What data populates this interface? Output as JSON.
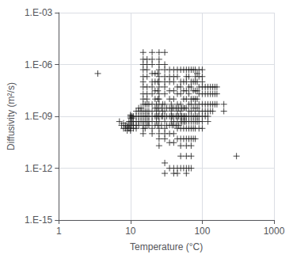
{
  "chart_data": {
    "type": "scatter",
    "xlabel": "Temperature (°C)",
    "ylabel": "Diffusivity (m²/s)",
    "log": true,
    "grid": true,
    "marker": "plus",
    "color": "#1a1a1a",
    "xlim": [
      1,
      1000
    ],
    "ylim": [
      1e-15,
      0.001
    ],
    "xticks": [
      1,
      10,
      100,
      1000
    ],
    "yticks": [
      {
        "value": 1e-15,
        "label": "1.E-15"
      },
      {
        "value": 1e-12,
        "label": "1.E-12"
      },
      {
        "value": 1e-09,
        "label": "1.E-09"
      },
      {
        "value": 1e-06,
        "label": "1.E-06"
      },
      {
        "value": 0.001,
        "label": "1.E-03"
      }
    ],
    "x": [
      3.5,
      7.0,
      7.5,
      8.0,
      8.0,
      8.5,
      8.5,
      9.0,
      9.0,
      9.0,
      9.5,
      9.5,
      9.5,
      10.0,
      10.0,
      10.0,
      10.0,
      10.0,
      10.0,
      10.0,
      10.5,
      10.5,
      10.5,
      10.5,
      11.0,
      11.0,
      11.0,
      11.0,
      12.0,
      12.0,
      12.0,
      12.0,
      12.0,
      13.0,
      13.0,
      13.0,
      13.0,
      13.0,
      14.0,
      14.0,
      14.0,
      14.0,
      15.0,
      15.0,
      15.0,
      15.0,
      15.0,
      15.0,
      15.0,
      15.0,
      15.0,
      15.0,
      15.0,
      15.0,
      15.0,
      15.0,
      15.0,
      15.0,
      16.0,
      16.0,
      16.0,
      16.0,
      16.0,
      17.0,
      17.0,
      17.0,
      17.0,
      17.0,
      17.0,
      17.0,
      17.0,
      17.0,
      17.0,
      17.0,
      17.0,
      18.0,
      18.0,
      18.0,
      18.0,
      18.0,
      20.0,
      20.0,
      20.0,
      20.0,
      20.0,
      20.0,
      20.0,
      20.0,
      20.0,
      20.0,
      20.0,
      20.0,
      20.0,
      22.0,
      22.0,
      22.0,
      22.0,
      22.0,
      22.0,
      22.0,
      23.0,
      23.0,
      23.0,
      23.0,
      24.0,
      24.0,
      24.0,
      24.0,
      24.0,
      24.0,
      24.0,
      25.0,
      25.0,
      25.0,
      25.0,
      25.0,
      25.0,
      25.0,
      25.0,
      25.0,
      25.0,
      25.0,
      25.0,
      25.0,
      25.0,
      25.0,
      25.0,
      25.0,
      27.0,
      27.0,
      27.0,
      28.0,
      28.0,
      28.0,
      30.0,
      30.0,
      30.0,
      30.0,
      30.0,
      30.0,
      30.0,
      30.0,
      30.0,
      30.0,
      30.0,
      30.0,
      30.0,
      30.0,
      30.0,
      30.0,
      32.0,
      32.0,
      32.0,
      35.0,
      35.0,
      35.0,
      35.0,
      35.0,
      35.0,
      35.0,
      35.0,
      35.0,
      35.0,
      35.0,
      37.0,
      37.0,
      37.0,
      37.0,
      38.0,
      38.0,
      38.0,
      40.0,
      40.0,
      40.0,
      40.0,
      40.0,
      40.0,
      40.0,
      40.0,
      40.0,
      40.0,
      40.0,
      40.0,
      40.0,
      43.0,
      43.0,
      43.0,
      45.0,
      45.0,
      45.0,
      45.0,
      45.0,
      45.0,
      45.0,
      45.0,
      45.0,
      45.0,
      45.0,
      45.0,
      47.0,
      47.0,
      47.0,
      50.0,
      50.0,
      50.0,
      50.0,
      50.0,
      50.0,
      50.0,
      50.0,
      50.0,
      50.0,
      50.0,
      50.0,
      50.0,
      52.0,
      52.0,
      52.0,
      55.0,
      55.0,
      55.0,
      55.0,
      55.0,
      55.0,
      55.0,
      55.0,
      55.0,
      55.0,
      57.0,
      57.0,
      57.0,
      60.0,
      60.0,
      60.0,
      60.0,
      60.0,
      60.0,
      60.0,
      60.0,
      60.0,
      60.0,
      60.0,
      60.0,
      60.0,
      60.0,
      65.0,
      65.0,
      65.0,
      65.0,
      65.0,
      65.0,
      65.0,
      65.0,
      65.0,
      65.0,
      65.0,
      70.0,
      70.0,
      70.0,
      70.0,
      70.0,
      70.0,
      70.0,
      70.0,
      70.0,
      70.0,
      70.0,
      70.0,
      70.0,
      75.0,
      75.0,
      75.0,
      75.0,
      75.0,
      75.0,
      75.0,
      75.0,
      75.0,
      80.0,
      80.0,
      80.0,
      80.0,
      80.0,
      80.0,
      80.0,
      80.0,
      80.0,
      80.0,
      80.0,
      85.0,
      85.0,
      85.0,
      85.0,
      85.0,
      85.0,
      85.0,
      90.0,
      90.0,
      90.0,
      90.0,
      90.0,
      90.0,
      90.0,
      90.0,
      90.0,
      100.0,
      100.0,
      100.0,
      100.0,
      100.0,
      100.0,
      100.0,
      100.0,
      100.0,
      100.0,
      110.0,
      110.0,
      110.0,
      110.0,
      110.0,
      120.0,
      120.0,
      120.0,
      120.0,
      120.0,
      120.0,
      130.0,
      130.0,
      130.0,
      130.0,
      140.0,
      140.0,
      140.0,
      140.0,
      150.0,
      150.0,
      150.0,
      160.0,
      160.0,
      160.0,
      200.0,
      200.0,
      300.0
    ],
    "values": [
      3e-07,
      5e-10,
      3e-10,
      2e-10,
      4e-10,
      2e-10,
      3e-10,
      1.5e-10,
      2.5e-10,
      3e-10,
      2e-10,
      3e-10,
      5e-10,
      1e-09,
      1.2e-09,
      8e-10,
      5e-10,
      3e-10,
      2e-10,
      1.5e-10,
      1e-09,
      8e-10,
      5e-10,
      3e-10,
      1e-09,
      5e-10,
      3e-10,
      2e-10,
      2e-09,
      1e-09,
      5e-10,
      3e-10,
      2e-10,
      3e-09,
      2e-09,
      1e-09,
      5e-10,
      3e-10,
      3e-09,
      2e-09,
      1e-09,
      5e-10,
      5e-06,
      2e-06,
      1e-06,
      5e-07,
      2e-07,
      1e-07,
      5e-08,
      2e-08,
      1e-08,
      5e-09,
      2e-09,
      1e-09,
      5e-10,
      3e-10,
      2e-10,
      1e-10,
      5e-09,
      2e-09,
      1e-09,
      5e-10,
      2e-10,
      2e-06,
      1e-06,
      5e-07,
      2e-07,
      5e-08,
      2e-08,
      1e-08,
      5e-09,
      2e-09,
      1e-09,
      5e-10,
      3e-10,
      5e-09,
      2e-09,
      1e-09,
      5e-10,
      3e-10,
      5e-06,
      2e-06,
      1e-06,
      3e-07,
      1e-07,
      5e-08,
      2e-08,
      5e-09,
      2e-09,
      1e-09,
      5e-10,
      2e-10,
      1e-10,
      3e-07,
      1e-07,
      3e-08,
      1e-08,
      3e-09,
      1e-09,
      3e-10,
      5e-09,
      2e-09,
      1e-09,
      5e-10,
      3e-07,
      1e-07,
      3e-08,
      1e-08,
      3e-09,
      1e-09,
      3e-10,
      5e-06,
      2e-06,
      1e-06,
      5e-07,
      2e-07,
      1e-07,
      5e-08,
      2e-08,
      1e-08,
      5e-09,
      2e-09,
      1e-09,
      5e-10,
      2e-10,
      1e-10,
      5e-11,
      2e-11,
      3e-09,
      1e-09,
      3e-10,
      5e-09,
      2e-09,
      1e-09,
      5e-06,
      1e-06,
      5e-07,
      2e-07,
      1e-07,
      5e-08,
      2e-08,
      5e-09,
      2e-09,
      1e-09,
      5e-10,
      2e-10,
      1e-10,
      5e-11,
      2e-12,
      5e-13,
      3e-09,
      1e-09,
      3e-10,
      5e-07,
      2e-07,
      1e-07,
      3e-08,
      1e-08,
      3e-09,
      1e-09,
      3e-10,
      1e-10,
      3e-11,
      1e-12,
      5e-09,
      2e-09,
      1e-09,
      5e-10,
      3e-09,
      1e-09,
      3e-10,
      5e-07,
      2e-07,
      1e-07,
      3e-08,
      1e-08,
      3e-09,
      1e-09,
      5e-10,
      3e-10,
      1e-10,
      3e-11,
      1e-12,
      5e-13,
      3e-09,
      1e-09,
      3e-10,
      5e-07,
      2e-07,
      5e-08,
      2e-08,
      5e-09,
      2e-09,
      1e-09,
      5e-10,
      2e-10,
      5e-11,
      1e-12,
      5e-13,
      3e-09,
      1e-09,
      3e-10,
      5e-07,
      1e-07,
      5e-08,
      2e-08,
      5e-09,
      2e-09,
      1e-09,
      5e-10,
      2e-10,
      5e-11,
      2e-11,
      5e-12,
      1e-12,
      3e-09,
      1e-09,
      5e-10,
      5e-07,
      1e-07,
      3e-08,
      1e-08,
      3e-09,
      1e-09,
      5e-10,
      2e-10,
      5e-11,
      1e-12,
      3e-09,
      1e-09,
      5e-10,
      5e-07,
      2e-07,
      1e-07,
      3e-08,
      1e-08,
      3e-09,
      1e-09,
      5e-10,
      2e-10,
      5e-11,
      2e-11,
      5e-12,
      1e-12,
      5e-13,
      5e-07,
      2e-07,
      5e-08,
      2e-08,
      5e-09,
      2e-09,
      1e-09,
      5e-10,
      2e-10,
      5e-11,
      1e-12,
      5e-07,
      1e-07,
      5e-08,
      1e-08,
      5e-09,
      2e-09,
      1e-09,
      5e-10,
      2e-10,
      5e-11,
      2e-11,
      5e-12,
      1e-12,
      5e-07,
      1e-07,
      3e-08,
      1e-08,
      3e-09,
      1e-09,
      5e-10,
      2e-10,
      5e-11,
      5e-07,
      2e-07,
      1e-07,
      3e-08,
      1e-08,
      5e-09,
      2e-09,
      1e-09,
      5e-10,
      2e-10,
      5e-11,
      3e-07,
      1e-07,
      3e-08,
      1e-08,
      3e-09,
      1e-09,
      5e-10,
      5e-07,
      2e-07,
      5e-08,
      2e-08,
      5e-09,
      2e-09,
      1e-09,
      5e-10,
      2e-10,
      5e-07,
      2e-07,
      1e-07,
      5e-08,
      2e-08,
      5e-09,
      2e-09,
      1e-09,
      5e-10,
      2e-10,
      5e-08,
      2e-08,
      5e-09,
      2e-09,
      1e-09,
      5e-08,
      2e-08,
      5e-09,
      2e-09,
      1e-09,
      5e-10,
      5e-08,
      2e-08,
      5e-09,
      2e-09,
      5e-08,
      2e-08,
      5e-09,
      2e-09,
      5e-08,
      2e-08,
      5e-09,
      5e-08,
      2e-08,
      5e-09,
      5e-09,
      2e-09,
      5e-12
    ]
  }
}
